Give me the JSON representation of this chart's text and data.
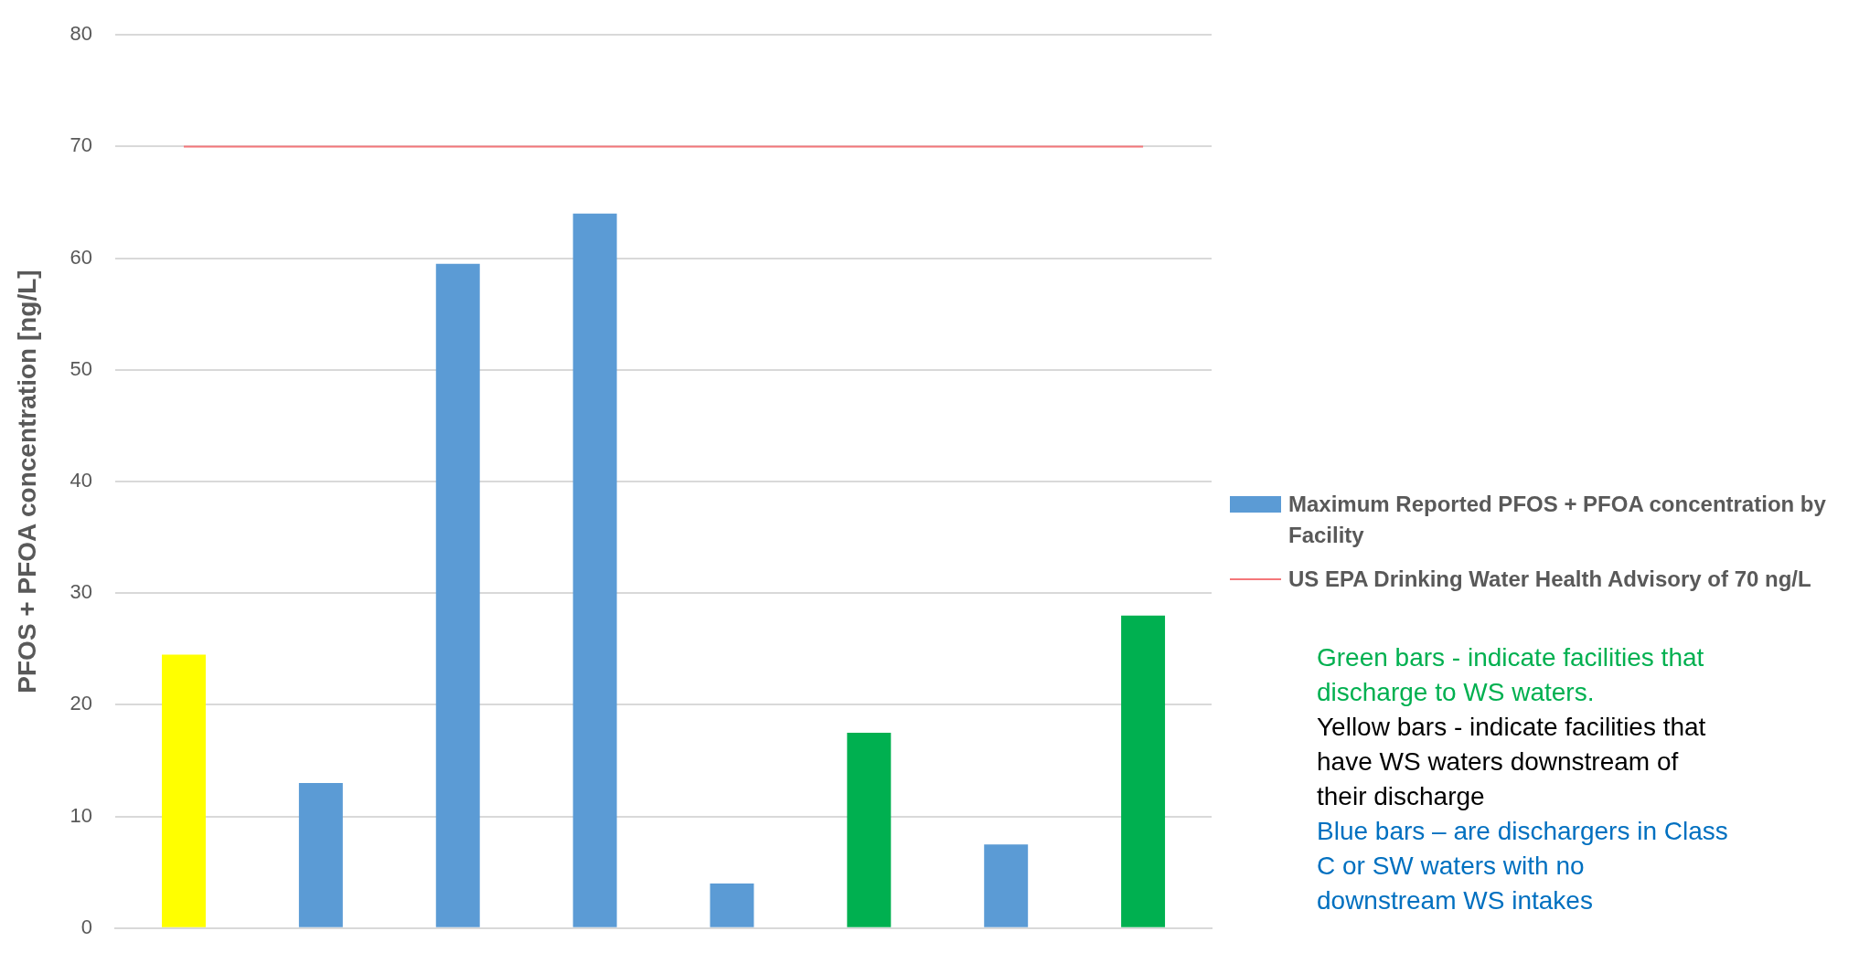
{
  "chart_data": {
    "type": "bar",
    "ylabel": "PFOS + PFOA concentration [ng/L]",
    "categories": [
      null,
      null,
      null,
      null,
      null,
      null,
      null,
      null
    ],
    "series": [
      {
        "name": "Maximum Reported PFOS + PFOA concentration by Facility",
        "color": "#5b9bd5",
        "colors": [
          "#ffff00",
          "#5b9bd5",
          "#5b9bd5",
          "#5b9bd5",
          "#5b9bd5",
          "#00b050",
          "#5b9bd5",
          "#00b050"
        ],
        "values": [
          24.5,
          13,
          59.5,
          64,
          4,
          17.5,
          7.5,
          28
        ]
      }
    ],
    "ylim": [
      0,
      80
    ],
    "yticks": [
      0,
      10,
      20,
      30,
      40,
      50,
      60,
      70,
      80
    ],
    "grid": "y",
    "legend": "right",
    "ref_lines": [
      {
        "axis": "y",
        "value": 70,
        "label": "US EPA Drinking Water Health Advisory of 70 ng/L",
        "color": "#f4777a"
      }
    ],
    "annotations": [
      "Green bars -  indicate facilities that discharge to WS waters.",
      "Yellow bars - indicate facilities that have WS waters downstream of their discharge",
      "Blue bars – are dischargers in Class C or SW waters with no downstream WS intakes"
    ]
  }
}
